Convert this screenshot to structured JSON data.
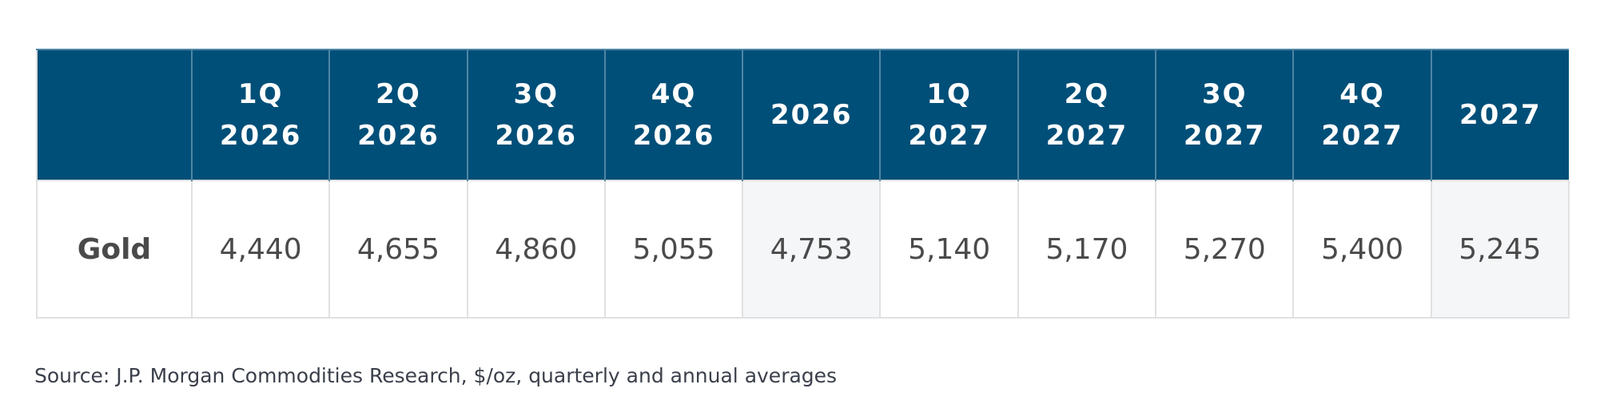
{
  "table": {
    "columns": [
      "1Q 2026",
      "2Q 2026",
      "3Q 2026",
      "4Q 2026",
      "2026",
      "1Q 2027",
      "2Q 2027",
      "3Q 2027",
      "4Q 2027",
      "2027"
    ],
    "rows": [
      [
        "Gold",
        "4,440",
        "4,655",
        "4,860",
        "5,055",
        "4,753",
        "5,140",
        "5,170",
        "5,270",
        "5,400",
        "5,245"
      ]
    ]
  },
  "source": "Source: J.P. Morgan Commodities Research, $/oz, quarterly and annual averages"
}
